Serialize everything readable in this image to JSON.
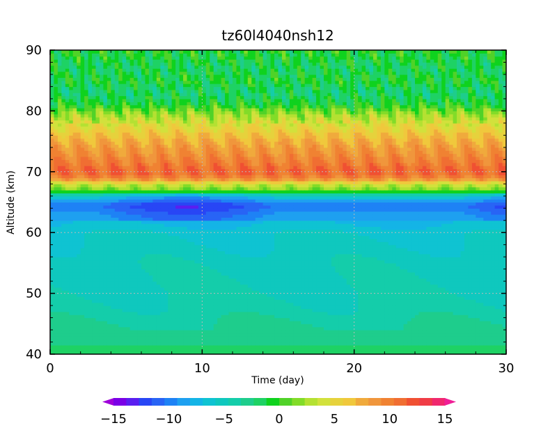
{
  "chart_data": {
    "type": "heatmap",
    "title": "tz60l4040nsh12",
    "xlabel": "Time (day)",
    "ylabel": "Altitude (km)",
    "xlim": [
      0,
      30
    ],
    "ylim": [
      40,
      90
    ],
    "x_ticks": [
      "0",
      "10",
      "20",
      "30"
    ],
    "y_ticks": [
      "40",
      "50",
      "60",
      "70",
      "80",
      "90"
    ],
    "grid": "dotted at x=10,20 and y=50,60,70",
    "colorbar": {
      "orientation": "horizontal",
      "placement": "bottom",
      "range": [
        -15,
        15
      ],
      "ticks": [
        "−15",
        "−10",
        "−5",
        "0",
        "5",
        "10",
        "15"
      ],
      "colors": [
        "#9e00d9",
        "#7a00e6",
        "#5a1ef0",
        "#2846f5",
        "#2864f5",
        "#1e82f5",
        "#1ea0f0",
        "#14b4e6",
        "#0fc3d2",
        "#0fc8be",
        "#14cdaa",
        "#1ecd8c",
        "#1ed264",
        "#0fd21e",
        "#50d228",
        "#82dc28",
        "#b4e132",
        "#d2e13c",
        "#e6d23c",
        "#f0c83c",
        "#f0aa3c",
        "#f0963c",
        "#f08232",
        "#f06e32",
        "#f05032",
        "#f03c46",
        "#f0286e",
        "#f01e96"
      ]
    },
    "profile": {
      "altitude_km": [
        40,
        41,
        42,
        44,
        47,
        50,
        55,
        60,
        63,
        64.5,
        66,
        67,
        68,
        69,
        70,
        72,
        75,
        78,
        80,
        81,
        83,
        85,
        87,
        90
      ],
      "value": [
        -1.0,
        -1.5,
        -2.5,
        -3.0,
        -3.8,
        -4.3,
        -4.6,
        -5.5,
        -7.5,
        -9.0,
        -5.0,
        1.5,
        3.5,
        9.0,
        10.5,
        9.0,
        7.0,
        4.0,
        1.5,
        -0.5,
        -2.0,
        -0.8,
        -1.5,
        -0.5
      ]
    }
  }
}
